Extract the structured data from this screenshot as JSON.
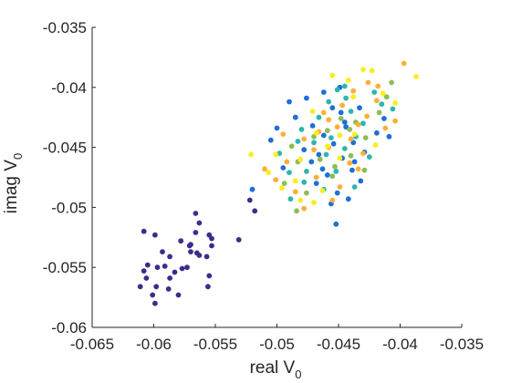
{
  "chart_data": {
    "type": "scatter",
    "title": "",
    "xlabel_main": "real V",
    "xlabel_sub": "0",
    "ylabel_main": "imag V",
    "ylabel_sub": "0",
    "xlim": [
      -0.065,
      -0.035
    ],
    "ylim": [
      -0.06,
      -0.035
    ],
    "x_ticks": [
      -0.065,
      -0.06,
      -0.055,
      -0.05,
      -0.045,
      -0.04,
      -0.035
    ],
    "x_tick_labels": [
      "-0.065",
      "-0.06",
      "-0.055",
      "-0.05",
      "-0.045",
      "-0.04",
      "-0.035"
    ],
    "y_ticks": [
      -0.035,
      -0.04,
      -0.045,
      -0.05,
      -0.055,
      -0.06
    ],
    "y_tick_labels": [
      "-0.035",
      "-0.04",
      "-0.045",
      "-0.05",
      "-0.055",
      "-0.06"
    ],
    "grid": false,
    "box": "left-bottom",
    "colors": {
      "navy": "#3a2e8a",
      "blue": "#1f6fd8",
      "teal": "#2cb6b0",
      "green": "#8fbd55",
      "orange": "#fbb03b",
      "yellow": "#f7ee1e"
    },
    "series": [
      {
        "color_key": "navy",
        "points": [
          [
            -0.0608,
            -0.052
          ],
          [
            -0.0599,
            -0.0523
          ],
          [
            -0.0593,
            -0.0537
          ],
          [
            -0.0591,
            -0.0549
          ],
          [
            -0.0597,
            -0.055
          ],
          [
            -0.0605,
            -0.0548
          ],
          [
            -0.0608,
            -0.0553
          ],
          [
            -0.0606,
            -0.0559
          ],
          [
            -0.0611,
            -0.0566
          ],
          [
            -0.0598,
            -0.0566
          ],
          [
            -0.0601,
            -0.0573
          ],
          [
            -0.0599,
            -0.058
          ],
          [
            -0.0588,
            -0.0568
          ],
          [
            -0.0587,
            -0.0559
          ],
          [
            -0.0583,
            -0.0554
          ],
          [
            -0.058,
            -0.0573
          ],
          [
            -0.0587,
            -0.0541
          ],
          [
            -0.0577,
            -0.0551
          ],
          [
            -0.0573,
            -0.055
          ],
          [
            -0.057,
            -0.0537
          ],
          [
            -0.0578,
            -0.0528
          ],
          [
            -0.0571,
            -0.0532
          ],
          [
            -0.0565,
            -0.0538
          ],
          [
            -0.0563,
            -0.054
          ],
          [
            -0.0566,
            -0.0505
          ],
          [
            -0.0563,
            -0.0513
          ],
          [
            -0.0566,
            -0.0521
          ],
          [
            -0.0555,
            -0.0523
          ],
          [
            -0.0553,
            -0.0532
          ],
          [
            -0.0557,
            -0.0541
          ],
          [
            -0.0555,
            -0.0557
          ],
          [
            -0.0556,
            -0.0566
          ],
          [
            -0.0553,
            -0.0526
          ],
          [
            -0.0531,
            -0.0527
          ],
          [
            -0.0522,
            -0.0494
          ],
          [
            -0.0518,
            -0.0503
          ],
          [
            -0.057,
            -0.0531
          ]
        ]
      },
      {
        "color_key": "blue",
        "points": [
          [
            -0.0485,
            -0.0425
          ],
          [
            -0.0471,
            -0.0432
          ],
          [
            -0.0462,
            -0.044
          ],
          [
            -0.0454,
            -0.0447
          ],
          [
            -0.0448,
            -0.0421
          ],
          [
            -0.0445,
            -0.0429
          ],
          [
            -0.0438,
            -0.0446
          ],
          [
            -0.0433,
            -0.0417
          ],
          [
            -0.0478,
            -0.0452
          ],
          [
            -0.0463,
            -0.0468
          ],
          [
            -0.0459,
            -0.0473
          ],
          [
            -0.0468,
            -0.048
          ],
          [
            -0.0451,
            -0.0488
          ],
          [
            -0.0442,
            -0.0493
          ],
          [
            -0.0447,
            -0.0459
          ],
          [
            -0.0437,
            -0.0462
          ],
          [
            -0.0429,
            -0.0454
          ],
          [
            -0.0419,
            -0.0438
          ],
          [
            -0.0413,
            -0.0426
          ],
          [
            -0.0409,
            -0.0441
          ],
          [
            -0.0476,
            -0.0409
          ],
          [
            -0.0462,
            -0.0404
          ],
          [
            -0.0455,
            -0.0417
          ],
          [
            -0.0449,
            -0.04
          ],
          [
            -0.0505,
            -0.0444
          ],
          [
            -0.0495,
            -0.0467
          ],
          [
            -0.0472,
            -0.0462
          ],
          [
            -0.0439,
            -0.0469
          ],
          [
            -0.0456,
            -0.0497
          ],
          [
            -0.0432,
            -0.0478
          ],
          [
            -0.0444,
            -0.0433
          ],
          [
            -0.05,
            -0.0434
          ],
          [
            -0.049,
            -0.0412
          ],
          [
            -0.0452,
            -0.0514
          ],
          [
            -0.052,
            -0.0485
          ],
          [
            -0.0466,
            -0.0456
          ]
        ]
      },
      {
        "color_key": "teal",
        "points": [
          [
            -0.048,
            -0.0435
          ],
          [
            -0.0466,
            -0.0425
          ],
          [
            -0.0458,
            -0.0412
          ],
          [
            -0.0451,
            -0.0402
          ],
          [
            -0.0445,
            -0.0399
          ],
          [
            -0.0444,
            -0.0409
          ],
          [
            -0.044,
            -0.042
          ],
          [
            -0.043,
            -0.043
          ],
          [
            -0.047,
            -0.0446
          ],
          [
            -0.046,
            -0.0456
          ],
          [
            -0.0452,
            -0.047
          ],
          [
            -0.0437,
            -0.0483
          ],
          [
            -0.049,
            -0.0471
          ],
          [
            -0.0478,
            -0.0479
          ],
          [
            -0.0462,
            -0.0485
          ],
          [
            -0.0425,
            -0.0458
          ],
          [
            -0.0415,
            -0.0414
          ],
          [
            -0.0406,
            -0.0418
          ],
          [
            -0.0498,
            -0.0455
          ],
          [
            -0.0483,
            -0.0445
          ],
          [
            -0.0445,
            -0.0451
          ],
          [
            -0.0476,
            -0.047
          ],
          [
            -0.0456,
            -0.0442
          ],
          [
            -0.0436,
            -0.0441
          ],
          [
            -0.0421,
            -0.0404
          ],
          [
            -0.0489,
            -0.0493
          ]
        ]
      },
      {
        "color_key": "green",
        "points": [
          [
            -0.0488,
            -0.0449
          ],
          [
            -0.047,
            -0.0441
          ],
          [
            -0.0459,
            -0.0436
          ],
          [
            -0.0448,
            -0.0426
          ],
          [
            -0.0441,
            -0.0435
          ],
          [
            -0.0455,
            -0.0474
          ],
          [
            -0.044,
            -0.0457
          ],
          [
            -0.0428,
            -0.0442
          ],
          [
            -0.0417,
            -0.0421
          ],
          [
            -0.0411,
            -0.0408
          ],
          [
            -0.0494,
            -0.048
          ],
          [
            -0.0476,
            -0.0488
          ],
          [
            -0.0465,
            -0.046
          ],
          [
            -0.0453,
            -0.0466
          ],
          [
            -0.0436,
            -0.0429
          ],
          [
            -0.0483,
            -0.0462
          ],
          [
            -0.0407,
            -0.0396
          ],
          [
            -0.0484,
            -0.0503
          ],
          [
            -0.0429,
            -0.0469
          ]
        ]
      },
      {
        "color_key": "orange",
        "points": [
          [
            -0.0501,
            -0.0477
          ],
          [
            -0.0492,
            -0.0462
          ],
          [
            -0.0478,
            -0.0443
          ],
          [
            -0.047,
            -0.0452
          ],
          [
            -0.0462,
            -0.0421
          ],
          [
            -0.0458,
            -0.045
          ],
          [
            -0.0451,
            -0.0433
          ],
          [
            -0.0447,
            -0.0415
          ],
          [
            -0.044,
            -0.0443
          ],
          [
            -0.0434,
            -0.0431
          ],
          [
            -0.0427,
            -0.0424
          ],
          [
            -0.0419,
            -0.0411
          ],
          [
            -0.0418,
            -0.0399
          ],
          [
            -0.0404,
            -0.0428
          ],
          [
            -0.0397,
            -0.038
          ],
          [
            -0.0485,
            -0.0487
          ],
          [
            -0.0468,
            -0.0475
          ],
          [
            -0.0449,
            -0.0483
          ],
          [
            -0.0434,
            -0.0468
          ],
          [
            -0.0426,
            -0.0396
          ],
          [
            -0.051,
            -0.0468
          ],
          [
            -0.0478,
            -0.0501
          ],
          [
            -0.0466,
            -0.0437
          ],
          [
            -0.0441,
            -0.0463
          ],
          [
            -0.043,
            -0.0455
          ],
          [
            -0.0412,
            -0.0434
          ],
          [
            -0.0495,
            -0.0439
          ],
          [
            -0.0455,
            -0.0494
          ],
          [
            -0.0438,
            -0.0403
          ],
          [
            -0.0458,
            -0.0427
          ]
        ]
      },
      {
        "color_key": "yellow",
        "points": [
          [
            -0.0521,
            -0.0456
          ],
          [
            -0.0507,
            -0.0471
          ],
          [
            -0.0496,
            -0.0484
          ],
          [
            -0.0481,
            -0.046
          ],
          [
            -0.0468,
            -0.0438
          ],
          [
            -0.0459,
            -0.0449
          ],
          [
            -0.0449,
            -0.044
          ],
          [
            -0.0437,
            -0.0439
          ],
          [
            -0.043,
            -0.0385
          ],
          [
            -0.0423,
            -0.0386
          ],
          [
            -0.0404,
            -0.0413
          ],
          [
            -0.0387,
            -0.0391
          ],
          [
            -0.0501,
            -0.0456
          ],
          [
            -0.0485,
            -0.0478
          ],
          [
            -0.0471,
            -0.042
          ],
          [
            -0.0455,
            -0.039
          ],
          [
            -0.0438,
            -0.0408
          ],
          [
            -0.042,
            -0.0448
          ],
          [
            -0.047,
            -0.0496
          ],
          [
            -0.0442,
            -0.0394
          ],
          [
            -0.0414,
            -0.0405
          ],
          [
            -0.0481,
            -0.0494
          ],
          [
            -0.0463,
            -0.0486
          ],
          [
            -0.0449,
            -0.0459
          ]
        ]
      }
    ]
  }
}
